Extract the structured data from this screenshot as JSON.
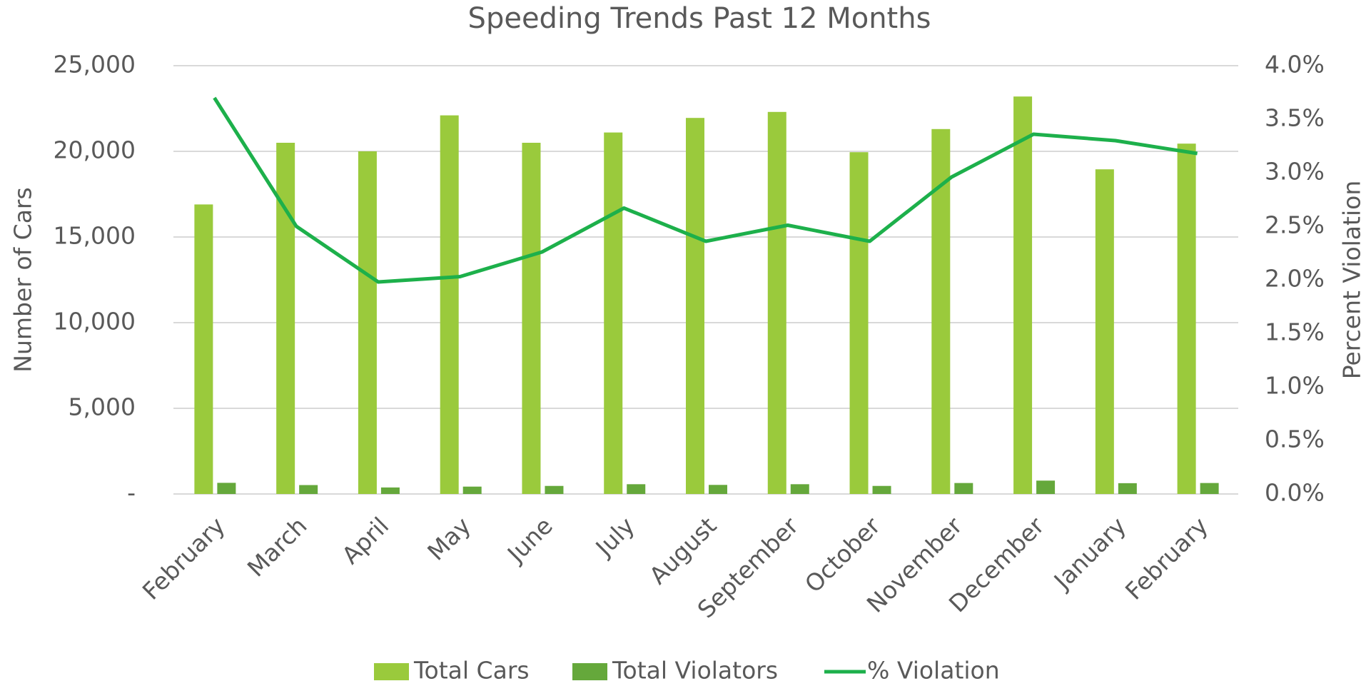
{
  "chart_data": {
    "type": "bar_line",
    "title": "Speeding Trends Past 12 Months",
    "y_label": "Number of Cars",
    "y2_label": "Percent Violation",
    "categories": [
      "February",
      "March",
      "April",
      "May",
      "June",
      "July",
      "August",
      "September",
      "October",
      "November",
      "December",
      "January",
      "February"
    ],
    "series": [
      {
        "name": "Total Cars",
        "type": "bar",
        "color": "#9aca3c",
        "values": [
          16900,
          20500,
          20000,
          22100,
          20500,
          21100,
          21950,
          22300,
          19950,
          21300,
          23200,
          18950,
          20450
        ]
      },
      {
        "name": "Total Violators",
        "type": "bar",
        "color": "#65a83b",
        "values": [
          650,
          520,
          380,
          430,
          470,
          570,
          530,
          570,
          470,
          640,
          780,
          630,
          640
        ]
      },
      {
        "name": "% Violation",
        "type": "line",
        "axis": "y2",
        "color": "#1db04b",
        "values": [
          3.7,
          2.5,
          1.98,
          2.03,
          2.26,
          2.67,
          2.36,
          2.51,
          2.36,
          2.96,
          3.36,
          3.3,
          3.18
        ]
      }
    ],
    "ylim": [
      0,
      25000
    ],
    "yticks": [
      {
        "value": 0,
        "label": "-"
      },
      {
        "value": 5000,
        "label": "5,000"
      },
      {
        "value": 10000,
        "label": "10,000"
      },
      {
        "value": 15000,
        "label": "15,000"
      },
      {
        "value": 20000,
        "label": "20,000"
      },
      {
        "value": 25000,
        "label": "25,000"
      }
    ],
    "y2lim": [
      0,
      4
    ],
    "y2ticks": [
      {
        "value": 0,
        "label": "0.0%"
      },
      {
        "value": 0.5,
        "label": "0.5%"
      },
      {
        "value": 1,
        "label": "1.0%"
      },
      {
        "value": 1.5,
        "label": "1.5%"
      },
      {
        "value": 2,
        "label": "2.0%"
      },
      {
        "value": 2.5,
        "label": "2.5%"
      },
      {
        "value": 3,
        "label": "3.0%"
      },
      {
        "value": 3.5,
        "label": "3.5%"
      },
      {
        "value": 4,
        "label": "4.0%"
      }
    ],
    "grid": true,
    "legend": "bottom"
  }
}
